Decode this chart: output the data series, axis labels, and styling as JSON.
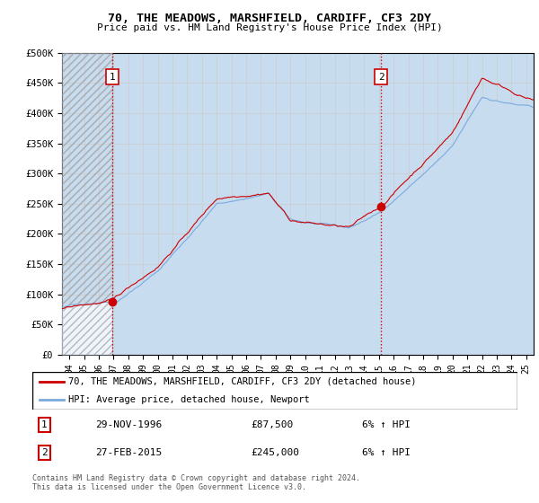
{
  "title": "70, THE MEADOWS, MARSHFIELD, CARDIFF, CF3 2DY",
  "subtitle": "Price paid vs. HM Land Registry's House Price Index (HPI)",
  "legend_line1": "70, THE MEADOWS, MARSHFIELD, CARDIFF, CF3 2DY (detached house)",
  "legend_line2": "HPI: Average price, detached house, Newport",
  "footnote": "Contains HM Land Registry data © Crown copyright and database right 2024.\nThis data is licensed under the Open Government Licence v3.0.",
  "transaction1_date": "29-NOV-1996",
  "transaction1_price": "£87,500",
  "transaction1_hpi": "6% ↑ HPI",
  "transaction2_date": "27-FEB-2015",
  "transaction2_price": "£245,000",
  "transaction2_hpi": "6% ↑ HPI",
  "sale1_year": 1996.92,
  "sale1_price": 87500,
  "sale2_year": 2015.15,
  "sale2_price": 245000,
  "ylim": [
    0,
    500000
  ],
  "xlim_start": 1993.5,
  "xlim_end": 2025.5,
  "price_line_color": "#cc0000",
  "hpi_line_color": "#7aaadd",
  "hpi_fill_color": "#c8dcf0",
  "sale_marker_color": "#cc0000",
  "dashed_line_color": "#cc0000",
  "grid_color": "#cccccc",
  "ytick_labels": [
    "£0",
    "£50K",
    "£100K",
    "£150K",
    "£200K",
    "£250K",
    "£300K",
    "£350K",
    "£400K",
    "£450K",
    "£500K"
  ],
  "xtick_labels": [
    "94",
    "95",
    "96",
    "97",
    "98",
    "99",
    "00",
    "01",
    "02",
    "03",
    "04",
    "05",
    "06",
    "07",
    "08",
    "09",
    "10",
    "11",
    "12",
    "13",
    "14",
    "15",
    "16",
    "17",
    "18",
    "19",
    "20",
    "21",
    "22",
    "23",
    "24",
    "25"
  ],
  "xtick_years": [
    1994,
    1995,
    1996,
    1997,
    1998,
    1999,
    2000,
    2001,
    2002,
    2003,
    2004,
    2005,
    2006,
    2007,
    2008,
    2009,
    2010,
    2011,
    2012,
    2013,
    2014,
    2015,
    2016,
    2017,
    2018,
    2019,
    2020,
    2021,
    2022,
    2023,
    2024,
    2025
  ]
}
